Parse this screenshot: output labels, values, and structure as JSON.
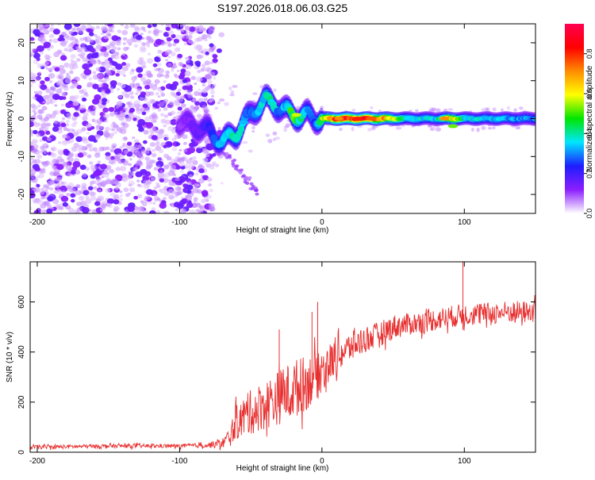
{
  "title": "S197.2026.018.06.03.G25",
  "chart_data": [
    {
      "type": "heatmap",
      "title": "S197.2026.018.06.03.G25",
      "xlabel": "Height of straight line (km)",
      "ylabel": "Frequency (Hz)",
      "xlim": [
        -205,
        150
      ],
      "ylim": [
        -25,
        25
      ],
      "xticks": [
        -200,
        -100,
        0,
        100
      ],
      "yticks": [
        -20,
        -10,
        0,
        10,
        20
      ],
      "colorbar": {
        "label": "Normalized spectral amplitude",
        "range": [
          0,
          0.95
        ],
        "ticks": [
          0.0,
          0.2,
          0.4,
          0.6,
          0.8
        ],
        "tick_labels": [
          "0.0",
          "0.2",
          "0.4",
          "0.6",
          "0.8"
        ],
        "colors": [
          "#ffffff",
          "#8c1eff",
          "#1e1eff",
          "#00e6ff",
          "#00e600",
          "#ffff00",
          "#ff8c00",
          "#ff0000",
          "#ff0050"
        ]
      },
      "ridge": {
        "description_x": [
          -100,
          -90,
          -80,
          -75,
          -70,
          -65,
          -60,
          -55,
          -50,
          -45,
          -40,
          -35,
          -30,
          -25,
          -20,
          -15,
          -10,
          -5,
          0,
          10,
          20,
          40,
          60,
          80,
          90,
          100,
          120,
          150
        ],
        "frequency_y": [
          -1,
          -2,
          -3,
          -5,
          -6,
          -5,
          -4,
          -1,
          1,
          3,
          5,
          4,
          3,
          2,
          1,
          0.5,
          1,
          0,
          0,
          0,
          0,
          0,
          0,
          0,
          0,
          0,
          0,
          0
        ],
        "amplitude": [
          0.1,
          0.15,
          0.2,
          0.3,
          0.35,
          0.4,
          0.4,
          0.35,
          0.3,
          0.35,
          0.4,
          0.4,
          0.3,
          0.35,
          0.55,
          0.4,
          0.3,
          0.25,
          0.55,
          0.85,
          0.9,
          0.8,
          0.4,
          0.35,
          0.7,
          0.4,
          0.35,
          0.3
        ]
      },
      "noise_region_x": [
        -205,
        -75
      ]
    },
    {
      "type": "line",
      "xlabel": "Height of straight line (km)",
      "ylabel": "SNR (10 * v/v)",
      "xlim": [
        -205,
        150
      ],
      "ylim": [
        0,
        760
      ],
      "xticks": [
        -200,
        -100,
        0,
        100
      ],
      "yticks": [
        0,
        200,
        400,
        600
      ],
      "color": "#e83030",
      "series": [
        {
          "name": "SNR",
          "x": [
            -205,
            -180,
            -150,
            -120,
            -100,
            -80,
            -70,
            -65,
            -60,
            -50,
            -40,
            -30,
            -20,
            -10,
            0,
            10,
            20,
            30,
            40,
            50,
            60,
            70,
            80,
            90,
            100,
            110,
            120,
            130,
            140,
            150
          ],
          "y": [
            20,
            22,
            25,
            25,
            25,
            28,
            35,
            60,
            120,
            160,
            190,
            220,
            250,
            280,
            330,
            380,
            420,
            450,
            470,
            500,
            510,
            520,
            530,
            540,
            550,
            550,
            555,
            560,
            560,
            560
          ],
          "spread": [
            8,
            8,
            8,
            8,
            8,
            10,
            20,
            40,
            70,
            90,
            100,
            110,
            120,
            110,
            90,
            70,
            60,
            55,
            50,
            50,
            45,
            45,
            45,
            45,
            45,
            45,
            45,
            45,
            45,
            45
          ]
        }
      ],
      "spikes": [
        {
          "x": 99,
          "y": 800
        },
        {
          "x": -30,
          "y": 490
        },
        {
          "x": -7,
          "y": 560
        },
        {
          "x": -3,
          "y": 600
        }
      ]
    }
  ]
}
